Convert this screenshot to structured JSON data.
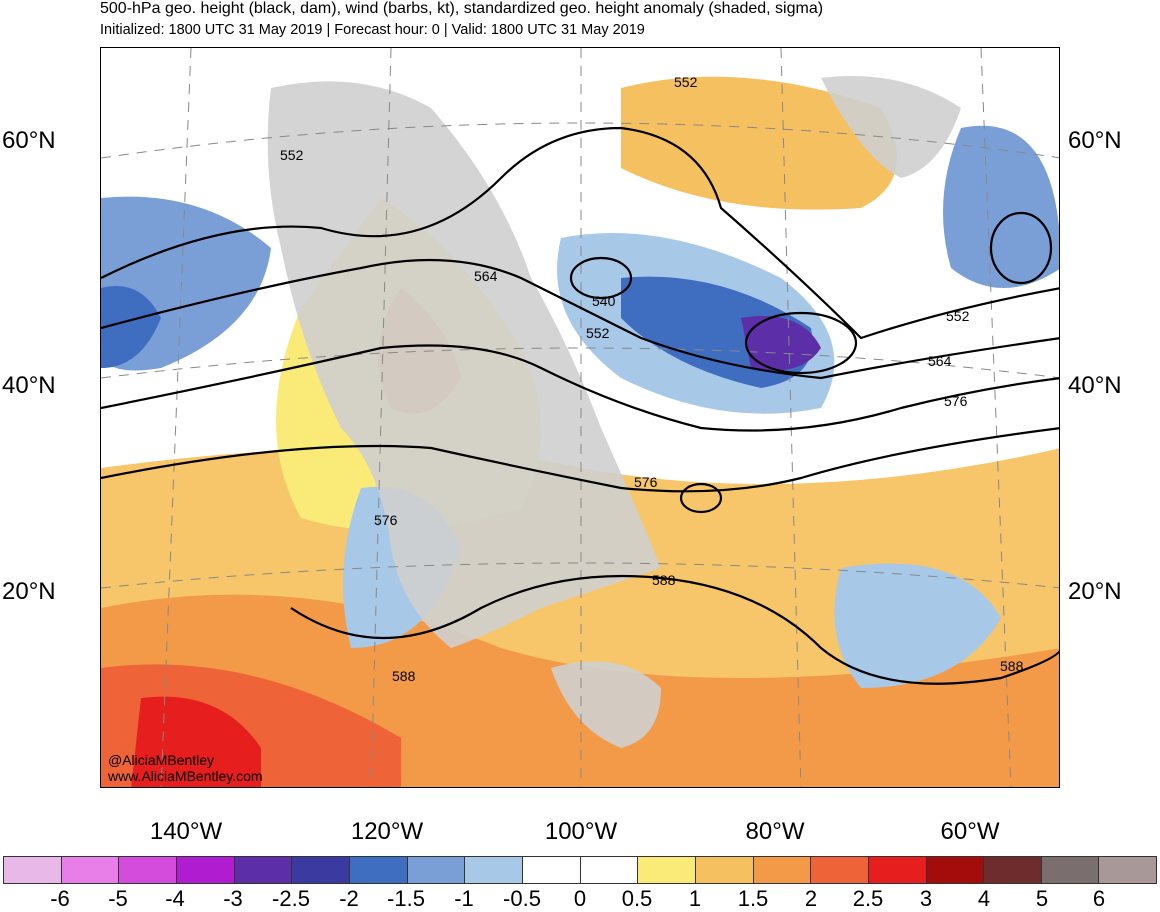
{
  "header": {
    "title": "500-hPa geo. height (black, dam), wind (barbs, kt), standardized geo. height anomaly (shaded, sigma)",
    "subtitle": "Initialized: 1800 UTC 31 May 2019 | Forecast hour: 0 | Valid: 1800 UTC 31 May 2019"
  },
  "map": {
    "lat_labels_left": [
      "60°N",
      "40°N",
      "20°N"
    ],
    "lat_labels_right": [
      "60°N",
      "40°N",
      "20°N"
    ],
    "lon_labels": [
      "140°W",
      "120°W",
      "100°W",
      "80°W",
      "60°W"
    ],
    "contour_labels": [
      "552",
      "552",
      "564",
      "540",
      "552",
      "576",
      "576",
      "588",
      "588",
      "552",
      "564",
      "576",
      "588"
    ],
    "credits": [
      "@AliciaMBentley",
      "www.AliciaMBentley.com"
    ]
  },
  "legend": {
    "ticks": [
      "-6",
      "-5",
      "-4",
      "-3",
      "-2.5",
      "-2",
      "-1.5",
      "-1",
      "-0.5",
      "0",
      "0.5",
      "1",
      "1.5",
      "2",
      "2.5",
      "3",
      "4",
      "5",
      "6"
    ],
    "colors": [
      "#e8b8e8",
      "#e87ee8",
      "#d44cdc",
      "#b01cd0",
      "#5c2fa8",
      "#3a3aa0",
      "#3f6ec0",
      "#7a9fd6",
      "#a8c8e8",
      "#ffffff",
      "#ffffff",
      "#faeb78",
      "#f5c060",
      "#f39a48",
      "#ee6438",
      "#e61e1e",
      "#a40c0c",
      "#6e2c2c",
      "#7a6e6e",
      "#a89898"
    ]
  }
}
